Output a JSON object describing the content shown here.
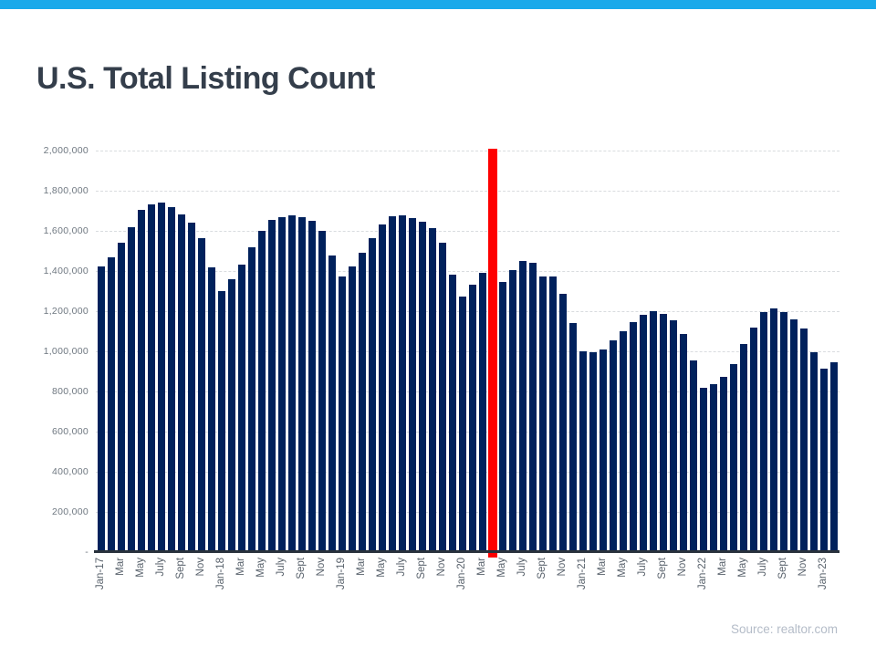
{
  "topbar": {
    "color": "#19a9ea"
  },
  "title": "U.S. Total Listing Count",
  "source": "Source: realtor.com",
  "chart_data": {
    "type": "bar",
    "title": "U.S. Total Listing Count",
    "xlabel": "",
    "ylabel": "",
    "ylim": [
      0,
      2000000
    ],
    "ytick_interval": 200000,
    "grid": "horizontal-dashed",
    "bar_color": "#00215c",
    "y_tick_labels_top_to_bottom": [
      "2,000,000",
      "1,800,000",
      "1,600,000",
      "1,400,000",
      "1,200,000",
      "1,000,000",
      "800,000",
      "600,000",
      "400,000",
      "200,000",
      "-"
    ],
    "x_tick_labels_every_second_bar": [
      "Jan-17",
      "Mar",
      "May",
      "July",
      "Sept",
      "Nov",
      "Jan-18",
      "Mar",
      "May",
      "July",
      "Sept",
      "Nov",
      "Jan-19",
      "Mar",
      "May",
      "July",
      "Sept",
      "Nov",
      "Jan-20",
      "Mar",
      "May",
      "July",
      "Sept",
      "Nov",
      "Jan-21",
      "Mar",
      "May",
      "July",
      "Sept",
      "Nov",
      "Jan-22",
      "Mar",
      "May",
      "July",
      "Sept",
      "Nov",
      "Jan-23"
    ],
    "highlight": {
      "index": 39,
      "label": "Apr-20",
      "color": "#fe0000",
      "style": "full-height-red-bar"
    },
    "values": [
      1424000,
      1470000,
      1541000,
      1620000,
      1705000,
      1732000,
      1741000,
      1717000,
      1682000,
      1641000,
      1565000,
      1417000,
      1300000,
      1359000,
      1432000,
      1520000,
      1601000,
      1656000,
      1670000,
      1677000,
      1667000,
      1650000,
      1600000,
      1478000,
      1375000,
      1424000,
      1492000,
      1565000,
      1630000,
      1671000,
      1677000,
      1662000,
      1645000,
      1615000,
      1541000,
      1383000,
      1275000,
      1334000,
      1389000,
      null,
      1344000,
      1405000,
      1450000,
      1440000,
      1375000,
      1371000,
      1288000,
      1141000,
      1000000,
      995000,
      1011000,
      1056000,
      1102000,
      1147000,
      1182000,
      1202000,
      1187000,
      1156000,
      1086000,
      955000,
      818000,
      838000,
      874000,
      935000,
      1038000,
      1117000,
      1197000,
      1215000,
      1197000,
      1159000,
      1114000,
      995000,
      914000,
      944000
    ]
  }
}
